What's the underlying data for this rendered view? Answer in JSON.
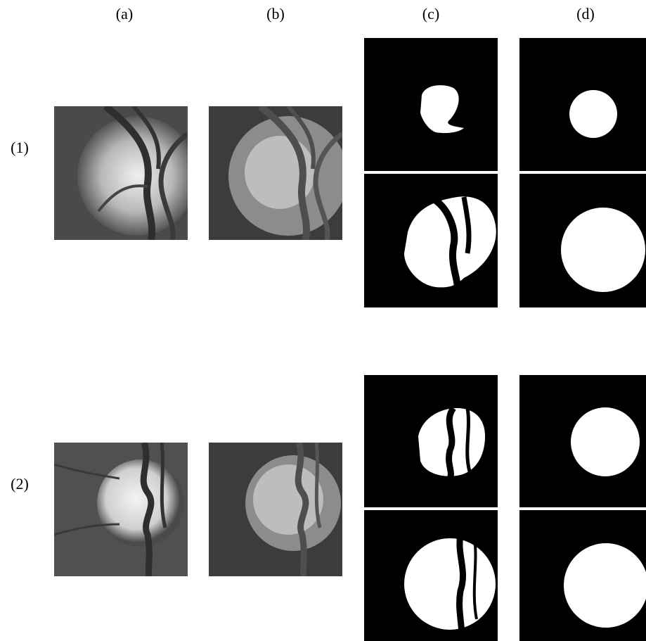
{
  "column_labels": [
    "(a)",
    "(b)",
    "(c)",
    "(d)"
  ],
  "row_labels": [
    "(1)",
    "(2)"
  ]
}
